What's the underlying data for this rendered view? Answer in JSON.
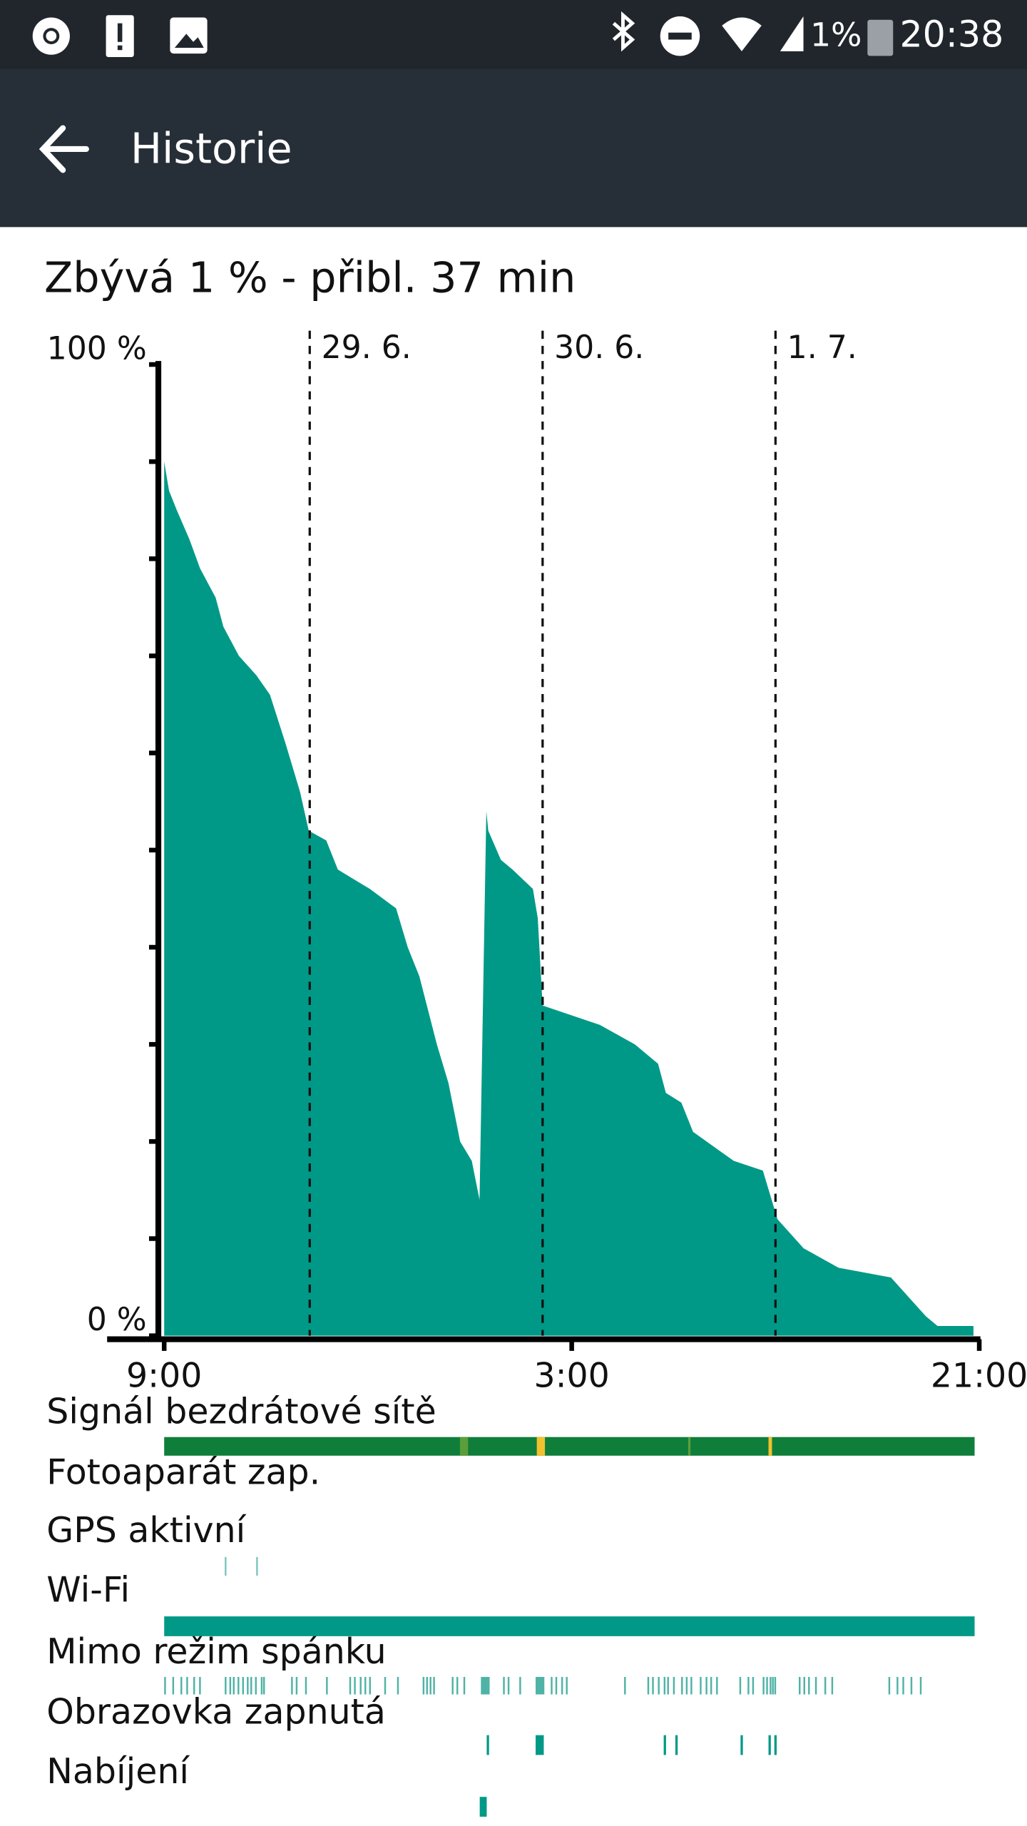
{
  "status_bar": {
    "battery": "1%",
    "time": "20:38"
  },
  "app_bar": {
    "title": "Historie"
  },
  "summary": "Zbývá 1 % - přibl. 37 min",
  "chart_data": {
    "type": "area",
    "color": "#009987",
    "x": [
      0,
      0.5,
      1.3,
      2.6,
      3.7,
      5.3,
      6.1,
      7.7,
      9.5,
      10.9,
      12.5,
      14,
      14.9,
      16.7,
      17.9,
      21.2,
      23.9,
      25.1,
      26.3,
      28.1,
      29.3,
      30.5,
      31.7,
      32.5,
      33.2,
      33.4,
      34.7,
      35.9,
      38,
      38.5,
      39,
      44.9,
      48.5,
      50.9,
      51.7,
      53.3,
      54.5,
      58.7,
      61.7,
      62.3,
      63.2,
      65.9,
      69.5,
      74.9,
      76.7,
      78.5,
      79.7,
      83.4
    ],
    "values": [
      90,
      87,
      85,
      82,
      79,
      76,
      73,
      70,
      68,
      66,
      61,
      56,
      52,
      51,
      48,
      46,
      44,
      40,
      37,
      30,
      26,
      20,
      18,
      14,
      54,
      52,
      49,
      48,
      46,
      43,
      34,
      32,
      30,
      28,
      25,
      24,
      21,
      18,
      17,
      15,
      12,
      9,
      7,
      6,
      4,
      2,
      1,
      1
    ],
    "xlim": [
      0,
      84
    ],
    "xticks": [
      {
        "value": 0,
        "label": "9:00"
      },
      {
        "value": 42,
        "label": "3:00"
      },
      {
        "value": 84,
        "label": "21:00"
      }
    ],
    "ylim": [
      0,
      100
    ],
    "yticks": [
      {
        "value": 100,
        "label": "100 %"
      },
      {
        "value": 0,
        "label": "0 %"
      }
    ],
    "minor_yticks": [
      10,
      20,
      30,
      40,
      50,
      60,
      70,
      80,
      90
    ],
    "annotations": [
      {
        "x": 15,
        "label": "29. 6."
      },
      {
        "x": 39,
        "label": "30. 6."
      },
      {
        "x": 63,
        "label": "1. 7."
      }
    ]
  },
  "tracks": [
    "Signál bezdrátové sítě",
    "Fotoaparát zap.",
    "GPS aktivní",
    "Wi-Fi",
    "Mimo režim spánku",
    "Obrazovka zapnutá",
    "Nabíjení"
  ]
}
